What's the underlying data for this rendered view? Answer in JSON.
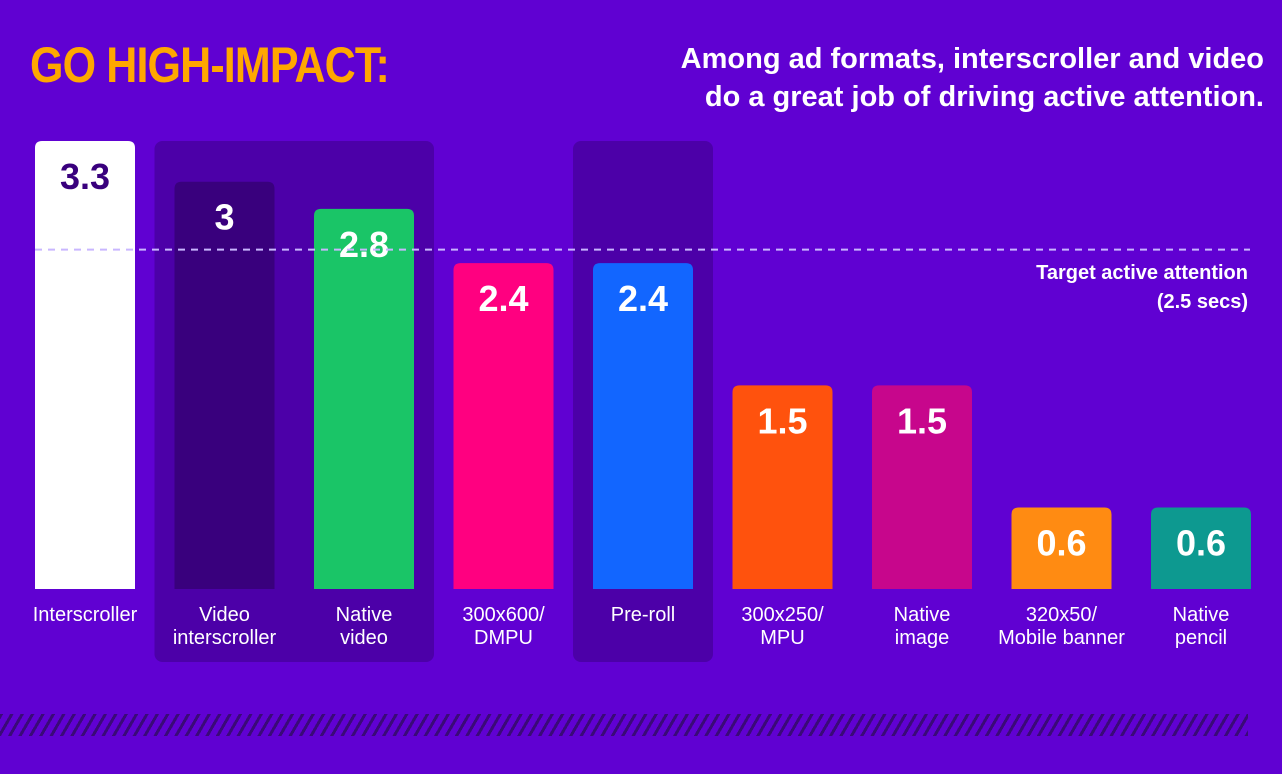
{
  "headline": "GO HIGH-IMPACT:",
  "subtitle_line1": "Among ad formats, interscroller and video",
  "subtitle_line2": "do a great job of driving active attention.",
  "chart_data": {
    "type": "bar",
    "categories": [
      [
        "Interscroller"
      ],
      [
        "Video",
        "interscroller"
      ],
      [
        "Native",
        "video"
      ],
      [
        "300x600/",
        "DMPU"
      ],
      [
        "Pre-roll"
      ],
      [
        "300x250/",
        "MPU"
      ],
      [
        "Native",
        "image"
      ],
      [
        "320x50/",
        "Mobile banner"
      ],
      [
        "Native",
        "pencil"
      ]
    ],
    "values": [
      3.3,
      3,
      2.8,
      2.4,
      2.4,
      1.5,
      1.5,
      0.6,
      0.6
    ],
    "value_labels": [
      "3.3",
      "3",
      "2.8",
      "2.4",
      "2.4",
      "1.5",
      "1.5",
      "0.6",
      "0.6"
    ],
    "bar_colors": [
      "#ffffff",
      "#39007d",
      "#1ac567",
      "#ff0080",
      "#1266ff",
      "#ff520d",
      "#c7068c",
      "#ff8b12",
      "#0d9990"
    ],
    "label_colors": [
      "#39007d",
      "#ffffff",
      "#ffffff",
      "#ffffff",
      "#ffffff",
      "#ffffff",
      "#ffffff",
      "#ffffff",
      "#ffffff"
    ],
    "highlight_groups": [
      [
        1,
        2
      ],
      [
        4
      ]
    ],
    "target_line": 2.5,
    "target_label_line1": "Target active attention",
    "target_label_line2": "(2.5 secs)",
    "ylim": [
      0,
      3.3
    ],
    "xlabel": "",
    "ylabel": ""
  },
  "colors": {
    "background": "#6001d2",
    "headline": "#ffa700",
    "highlight_panel": "#4c00a8",
    "target_line": "#c9b6ff"
  }
}
